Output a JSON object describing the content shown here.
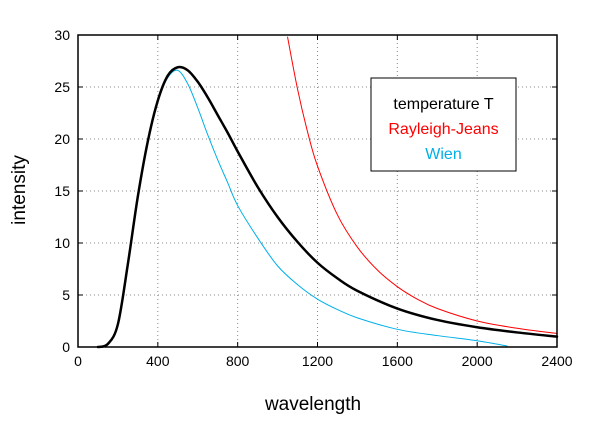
{
  "chart_data": {
    "type": "line",
    "title": "",
    "xlabel": "wavelength",
    "ylabel": "intensity",
    "xlim": [
      0,
      2400
    ],
    "ylim": [
      0,
      30
    ],
    "xticks": [
      0,
      400,
      800,
      1200,
      1600,
      2000,
      2400
    ],
    "yticks": [
      0,
      5,
      10,
      15,
      20,
      25,
      30
    ],
    "grid": true,
    "grid_style": "dotted",
    "legend_position": "top-right",
    "legend_entries": [
      "temperature T",
      "Rayleigh-Jeans",
      "Wien"
    ],
    "series": [
      {
        "name": "temperature T",
        "color": "#000000",
        "x": [
          100,
          150,
          200,
          250,
          300,
          350,
          400,
          450,
          500,
          550,
          600,
          650,
          700,
          750,
          800,
          900,
          1000,
          1100,
          1200,
          1300,
          1400,
          1600,
          1800,
          2000,
          2200,
          2400
        ],
        "y": [
          0,
          0.3,
          2.2,
          8,
          14.5,
          19.8,
          23.7,
          26.1,
          26.9,
          26.6,
          25.5,
          24,
          22.3,
          20.6,
          18.8,
          15.4,
          12.5,
          10.1,
          8.1,
          6.6,
          5.4,
          3.7,
          2.6,
          1.9,
          1.4,
          1.0
        ]
      },
      {
        "name": "Rayleigh-Jeans",
        "color": "#ff0000",
        "x": [
          1050,
          1100,
          1150,
          1200,
          1300,
          1400,
          1500,
          1600,
          1700,
          1800,
          2000,
          2200,
          2400
        ],
        "y": [
          29.8,
          24.8,
          20.7,
          17.4,
          12.7,
          9.6,
          7.4,
          5.8,
          4.6,
          3.7,
          2.5,
          1.8,
          1.3
        ]
      },
      {
        "name": "Wien",
        "color": "#00b0e8",
        "x": [
          100,
          150,
          200,
          250,
          300,
          350,
          400,
          450,
          500,
          550,
          600,
          650,
          700,
          750,
          800,
          900,
          1000,
          1100,
          1200,
          1300,
          1400,
          1600,
          1800,
          2000,
          2150
        ],
        "y": [
          0,
          0.3,
          2.2,
          8,
          14.5,
          19.8,
          23.7,
          25.9,
          26.6,
          25.3,
          23,
          20.4,
          18,
          15.8,
          13.6,
          10.5,
          7.8,
          6.0,
          4.6,
          3.6,
          2.8,
          1.7,
          1.1,
          0.6,
          0.1
        ]
      }
    ]
  }
}
